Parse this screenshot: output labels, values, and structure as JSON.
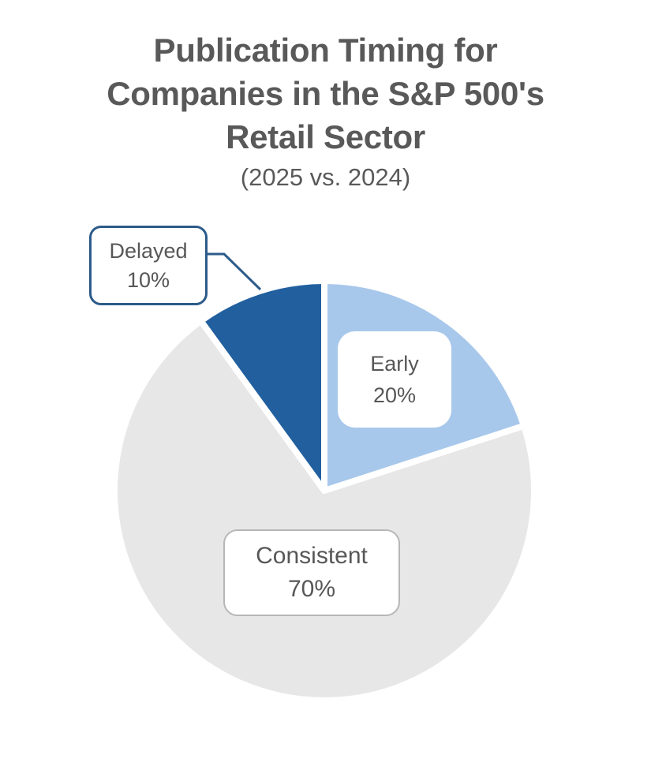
{
  "page": {
    "background": "#FFFFFF"
  },
  "chart_data": {
    "type": "pie",
    "title": "Publication Timing for Companies in the S&P 500's Retail Sector",
    "title_lines": [
      "Publication Timing for",
      "Companies in the S&P 500's",
      "Retail Sector"
    ],
    "subtitle": "(2025 vs. 2024)",
    "categories": [
      "Early",
      "Consistent",
      "Delayed"
    ],
    "values": [
      20,
      70,
      10
    ],
    "unit": "%",
    "slice_colors": [
      "#A8C8EB",
      "#E7E7E7",
      "#215F9E"
    ],
    "slice_separator_color": "#FFFFFF",
    "start_angle": "12-o'clock, clockwise",
    "legend": "none",
    "labels": {
      "early": {
        "name": "Early",
        "value": "20%"
      },
      "consistent": {
        "name": "Consistent",
        "value": "70%"
      },
      "delayed": {
        "name": "Delayed",
        "value": "10%"
      }
    },
    "callout": {
      "target_slice": "Delayed",
      "line_color": "#2C5B8A",
      "box_border_color": "#2C5B8A"
    }
  },
  "colors": {
    "title_text": "#595959",
    "label_text": "#575757",
    "consistent_label_border": "#B7B7B7",
    "dark_blue": "#215F9E",
    "light_blue": "#A8C8EB",
    "gray": "#E7E7E7"
  }
}
